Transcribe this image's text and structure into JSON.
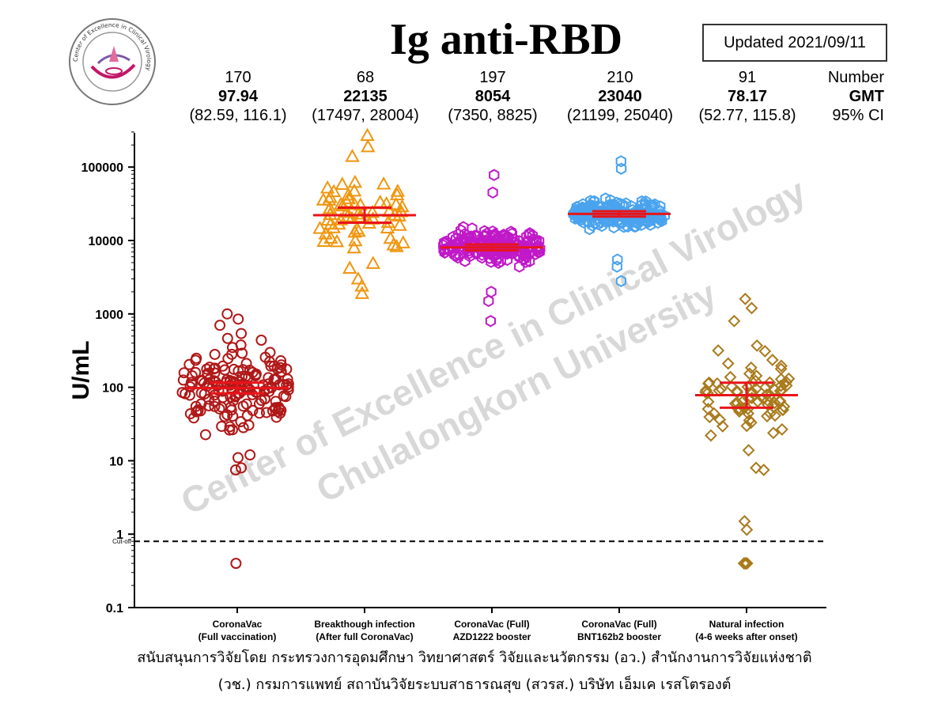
{
  "title": "Ig anti-RBD",
  "updated": "Updated 2021/09/11",
  "logo": {
    "text": "Center of Excellence in Clinical Virology"
  },
  "stat_labels": {
    "number": "Number",
    "gmt": "GMT",
    "ci": "95% CI"
  },
  "watermark": {
    "line1": "Center of Excellence in Clinical Virology",
    "line2": "Chulalongkorn University"
  },
  "colors": {
    "red": "#e8141a",
    "g1": "#b01818",
    "g2": "#f0960f",
    "g3": "#c019c8",
    "g4": "#4aa3ee",
    "g5": "#a97a1c"
  },
  "chart_data": {
    "type": "scatter",
    "yscale": "log",
    "ylim": [
      0.1,
      300000
    ],
    "ylabel": "U/mL",
    "yticks": [
      0.1,
      1,
      10,
      100,
      1000,
      10000,
      100000
    ],
    "ytick_labels": [
      "0.1",
      "1",
      "10",
      "100",
      "1000",
      "10000",
      "100000"
    ],
    "cutoff": {
      "value": 0.8,
      "label": "Cut-off"
    },
    "groups": [
      {
        "name_line1": "CoronaVac",
        "name_line2": "(Full vaccination)",
        "n": "170",
        "gmt": "97.94",
        "ci_text": "(82.59, 116.1)",
        "gmt_value": 97.94,
        "ci": [
          82.59,
          116.1
        ],
        "marker": "circle",
        "color": "#b01818",
        "extremes": [
          1000,
          850,
          700,
          7.5,
          8,
          11,
          12,
          0.4
        ]
      },
      {
        "name_line1": "Breakthough infection",
        "name_line2": "(After full CoronaVac)",
        "n": "68",
        "gmt": "22135",
        "ci_text": "(17497, 28004)",
        "gmt_value": 22135,
        "ci": [
          17497,
          28004
        ],
        "marker": "triangle",
        "color": "#f0960f",
        "extremes": [
          270000,
          190000,
          140000,
          1900,
          2400,
          3000,
          4200
        ]
      },
      {
        "name_line1": "CoronaVac (Full)",
        "name_line2": "AZD1222 booster",
        "n": "197",
        "gmt": "8054",
        "ci_text": "(7350, 8825)",
        "gmt_value": 8054,
        "ci": [
          7350,
          8825
        ],
        "marker": "hexagon",
        "color": "#c019c8",
        "extremes": [
          78000,
          45000,
          800,
          1500,
          2000
        ]
      },
      {
        "name_line1": "CoronaVac (Full)",
        "name_line2": "BNT162b2 booster",
        "n": "210",
        "gmt": "23040",
        "ci_text": "(21199, 25040)",
        "gmt_value": 23040,
        "ci": [
          21199,
          25040
        ],
        "marker": "hexagon",
        "color": "#4aa3ee",
        "extremes": [
          120000,
          95000,
          2800,
          4400,
          5500
        ]
      },
      {
        "name_line1": "Natural infection",
        "name_line2": "(4-6 weeks after onset)",
        "n": "91",
        "gmt": "78.17",
        "ci_text": "(52.77, 115.8)",
        "gmt_value": 78.17,
        "ci": [
          52.77,
          115.8
        ],
        "marker": "diamond",
        "color": "#a97a1c",
        "extremes": [
          1600,
          1200,
          800,
          1.5,
          1.15,
          0.4,
          0.4,
          0.4,
          0.4,
          0.4,
          7.5,
          8
        ]
      }
    ]
  },
  "footer": {
    "line1": "สนับสนุนการวิจัยโดย กระทรวงการอุดมศึกษา วิทยาศาสตร์ วิจัยและนวัตกรรม (อว.)  สำนักงานการวิจัยแห่งชาติ",
    "line2": "(วช.) กรมการแพทย์ สถาบันวิจัยระบบสาธารณสุข (สวรส.) บริษัท เอ็มเค เรสโตรองต์"
  }
}
